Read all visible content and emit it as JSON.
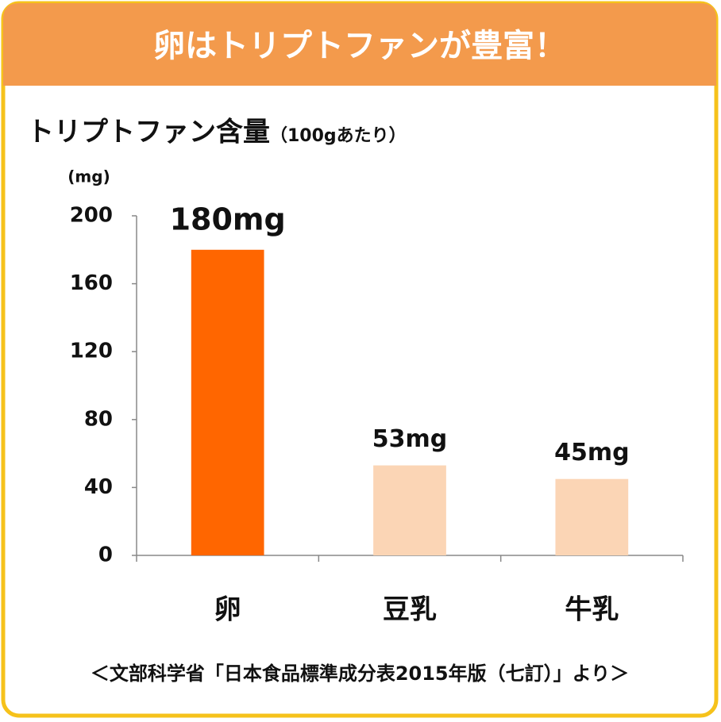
{
  "header": {
    "title": "卵はトリプトファンが豊富！"
  },
  "chart_data": {
    "type": "bar",
    "title": "トリプトファン含量",
    "subtitle": "（100gあたり）",
    "y_label": "(mg)",
    "categories": [
      "卵",
      "豆乳",
      "牛乳"
    ],
    "values": [
      180,
      53,
      45
    ],
    "value_labels": [
      "180mg",
      "53mg",
      "45mg"
    ],
    "colors": [
      "#ff6600",
      "#fbd5b5",
      "#fbd5b5"
    ],
    "ylim": [
      0,
      200
    ],
    "yticks": [
      0,
      40,
      80,
      120,
      160,
      200
    ],
    "grid": false
  },
  "footer": {
    "source": "＜文部科学省「日本食品標準成分表2015年版（七訂）」より＞"
  }
}
